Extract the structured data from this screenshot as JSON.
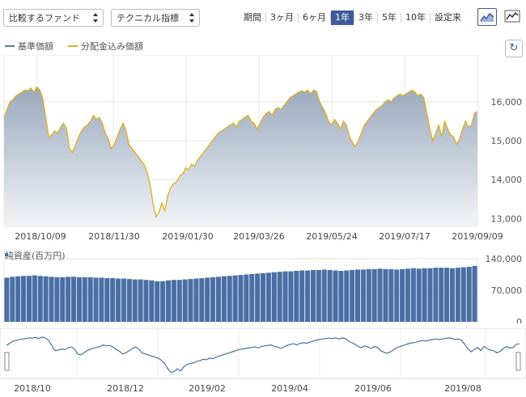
{
  "toolbar": {
    "compare_fund_label": "比較するファンド",
    "technical_label": "テクニカル指標",
    "periods": [
      "期間",
      "3ヶ月",
      "6ヶ月",
      "1年",
      "3年",
      "5年",
      "10年",
      "設定来"
    ],
    "active_period": "1年",
    "accent_color": "#3d5a99"
  },
  "legend": {
    "items": [
      {
        "label": "基準価額",
        "color": "#5a7ab0"
      },
      {
        "label": "分配金込み価額",
        "color": "#e0b020"
      }
    ]
  },
  "chart_data": [
    {
      "type": "area",
      "series": [
        {
          "name": "基準価額",
          "color": "#5a7ab0"
        },
        {
          "name": "分配金込み価額",
          "color": "#e0b020"
        }
      ],
      "x_ticks": [
        "2018/10/09",
        "2018/11/30",
        "2019/01/30",
        "2019/03/26",
        "2019/05/24",
        "2019/07/17",
        "2019/09/09"
      ],
      "y_ticks": [
        "13,000",
        "14,000",
        "15,000",
        "16,000"
      ],
      "ylim": [
        12800,
        17200
      ],
      "values": [
        15600,
        15800,
        16000,
        16050,
        16150,
        16200,
        16250,
        16300,
        16280,
        16350,
        16250,
        16380,
        16300,
        16100,
        15600,
        15100,
        15150,
        15250,
        15200,
        15350,
        15450,
        15300,
        14800,
        14700,
        14900,
        15100,
        15250,
        15350,
        15400,
        15500,
        15650,
        15550,
        15600,
        15450,
        15200,
        15050,
        14800,
        14900,
        15100,
        15300,
        15450,
        15250,
        14900,
        14800,
        14700,
        14600,
        14500,
        14400,
        14200,
        13900,
        13400,
        13050,
        13150,
        13400,
        13200,
        13600,
        13800,
        13900,
        13950,
        14100,
        14150,
        14300,
        14250,
        14400,
        14350,
        14500,
        14600,
        14700,
        14800,
        14900,
        15000,
        15100,
        15200,
        15250,
        15300,
        15350,
        15400,
        15450,
        15350,
        15500,
        15550,
        15600,
        15650,
        15500,
        15450,
        15300,
        15450,
        15600,
        15700,
        15750,
        15650,
        15800,
        15850,
        15800,
        15900,
        16000,
        16100,
        16150,
        16200,
        16250,
        16280,
        16250,
        16300,
        16200,
        16300,
        16250,
        16000,
        15850,
        15700,
        15500,
        15400,
        15550,
        15450,
        15300,
        15500,
        15400,
        15100,
        14950,
        14850,
        15000,
        15200,
        15400,
        15500,
        15600,
        15700,
        15800,
        15850,
        15900,
        16000,
        16050,
        16000,
        16100,
        16150,
        16200,
        16150,
        16200,
        16250,
        16300,
        16250,
        16150,
        16200,
        16100,
        15700,
        15300,
        15000,
        15200,
        15400,
        15100,
        15500,
        15300,
        15150,
        15100,
        14900,
        15050,
        15300,
        15500,
        15350,
        15400,
        15700,
        15750
      ]
    },
    {
      "type": "bar",
      "series": [
        {
          "name": "純資産(百万円)",
          "color": "#4a6fa5"
        }
      ],
      "y_ticks": [
        "0",
        "70,000",
        "140,000"
      ],
      "ylim": [
        0,
        140000
      ],
      "values": [
        98000,
        100000,
        101000,
        102000,
        102000,
        103000,
        102000,
        101000,
        100000,
        99000,
        99000,
        100000,
        100000,
        99000,
        99000,
        99000,
        98000,
        98000,
        97000,
        97000,
        96000,
        96000,
        95000,
        94000,
        94000,
        93000,
        92000,
        90000,
        90000,
        92000,
        93000,
        93000,
        94000,
        95000,
        96000,
        97000,
        98000,
        99000,
        100000,
        101000,
        102000,
        103000,
        104000,
        105000,
        106000,
        107000,
        108000,
        109000,
        110000,
        111000,
        112000,
        112000,
        113000,
        114000,
        114000,
        115000,
        115000,
        116000,
        115000,
        114000,
        113000,
        114000,
        115000,
        116000,
        116000,
        117000,
        117000,
        118000,
        117000,
        117000,
        116000,
        117000,
        118000,
        119000,
        118000,
        119000,
        119000,
        120000,
        120000,
        120000,
        119000,
        120000,
        121000,
        122000,
        124000
      ]
    },
    {
      "type": "line",
      "series": [
        {
          "name": "navigator",
          "color": "#4a6fa5"
        }
      ],
      "x_ticks": [
        "2018/10",
        "2018/12",
        "2019/02",
        "2019/04",
        "2019/06",
        "2019/08"
      ]
    }
  ]
}
